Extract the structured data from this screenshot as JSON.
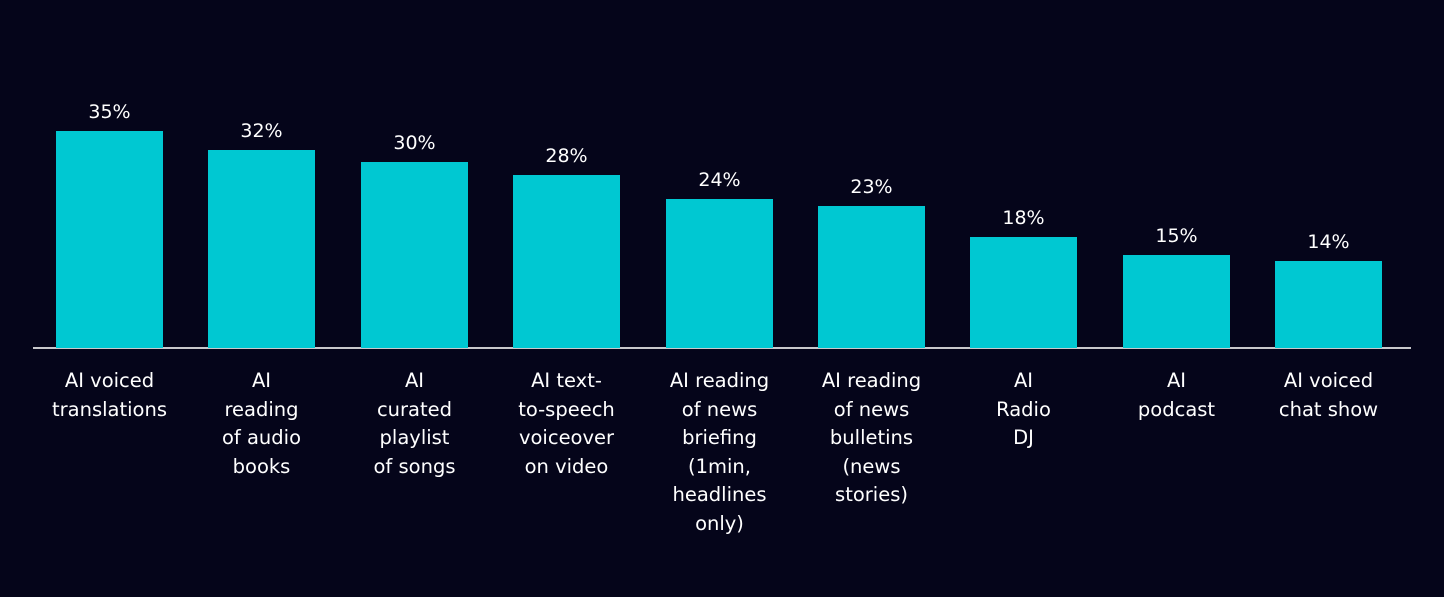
{
  "chart_data": {
    "type": "bar",
    "title": "",
    "xlabel": "",
    "ylabel": "",
    "ylim": [
      0,
      40
    ],
    "grid": false,
    "legend": null,
    "value_suffix": "%",
    "categories": [
      "AI voiced translations",
      "AI reading of audio books",
      "AI curated playlist of songs",
      "AI text-to-speech voiceover on video",
      "AI reading of news briefing (1min, headlines only)",
      "AI reading of news bulletins (news stories)",
      "AI Radio DJ",
      "AI podcast",
      "AI voiced chat show"
    ],
    "values": [
      35,
      32,
      30,
      28,
      24,
      23,
      18,
      15,
      14
    ],
    "bar_color": "#00c8d2",
    "background_color": "#05051a"
  },
  "bars": [
    {
      "label_lines": [
        "AI voiced",
        "translations"
      ],
      "value_label": "35%"
    },
    {
      "label_lines": [
        "AI",
        "reading",
        "of audio",
        "books"
      ],
      "value_label": "32%"
    },
    {
      "label_lines": [
        "AI",
        "curated",
        "playlist",
        "of songs"
      ],
      "value_label": "30%"
    },
    {
      "label_lines": [
        "AI text-",
        "to-speech",
        "voiceover",
        "on video"
      ],
      "value_label": "28%"
    },
    {
      "label_lines": [
        "AI reading",
        "of news",
        "briefing",
        "(1min,",
        "headlines",
        "only)"
      ],
      "value_label": "24%"
    },
    {
      "label_lines": [
        "AI reading",
        "of news",
        "bulletins",
        "(news",
        "stories)"
      ],
      "value_label": "23%"
    },
    {
      "label_lines": [
        "AI",
        "Radio",
        "DJ"
      ],
      "value_label": "18%"
    },
    {
      "label_lines": [
        "AI",
        "podcast"
      ],
      "value_label": "15%"
    },
    {
      "label_lines": [
        "AI voiced",
        "chat show"
      ],
      "value_label": "14%"
    }
  ]
}
